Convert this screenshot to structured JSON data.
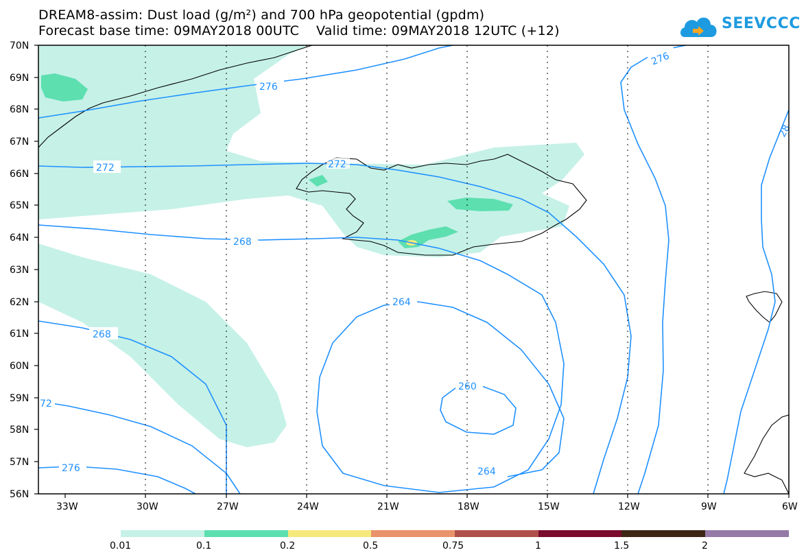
{
  "title_line1": "DREAM8-assim: Dust load (g/m²) and 700 hPa geopotential (gpdm)",
  "title_line2": "Forecast base time: 09MAY2018 00UTC    Valid time: 09MAY2018 12UTC (+12)",
  "logo_text": "SEEVCCC",
  "logo_icon": "cloud-icon",
  "lat_labels": [
    "70N",
    "69N",
    "68N",
    "67N",
    "66N",
    "65N",
    "64N",
    "63N",
    "62N",
    "61N",
    "60N",
    "59N",
    "58N",
    "57N",
    "56N"
  ],
  "lon_labels": [
    "33W",
    "30W",
    "27W",
    "24W",
    "21W",
    "18W",
    "15W",
    "12W",
    "9W",
    "6W"
  ],
  "contour_labels": [
    "276",
    "276",
    "28",
    "272",
    "272",
    "268",
    "268",
    "264",
    "264",
    "260",
    "72",
    "276"
  ],
  "legend": {
    "ticks": [
      "0.01",
      "0.1",
      "0.2",
      "0.5",
      "0.75",
      "1",
      "1.5",
      "2"
    ],
    "colors": [
      "#c6f1e7",
      "#5ddfb0",
      "#f5e97c",
      "#e9926b",
      "#b0504a",
      "#7a0b2d",
      "#3d2616",
      "#957aa8"
    ]
  },
  "colors": {
    "contour": "#1e90ff",
    "dust_light": "#c6f1e7",
    "dust_mid": "#5ddfb0",
    "dust_high": "#f5e97c",
    "coast": "#000000"
  }
}
